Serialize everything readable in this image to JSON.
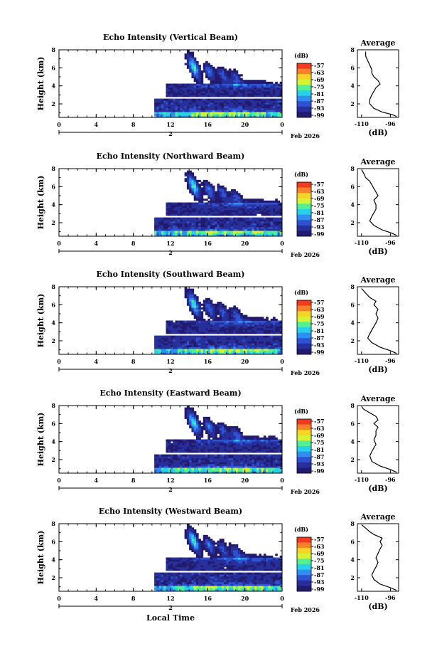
{
  "chart_data": [
    {
      "type": "heatmap",
      "title": "Echo Intensity (Vertical Beam)",
      "ylabel": "Height (km)",
      "xlabel": "",
      "x_ticks": [
        "0",
        "4",
        "8",
        "12",
        "16",
        "20",
        "0"
      ],
      "y_ticks": [
        "2",
        "4",
        "6",
        "8"
      ],
      "xlim": [
        0,
        24
      ],
      "ylim": [
        0.5,
        8
      ],
      "date_day": "2",
      "date_label": "Feb 2026",
      "colorbar": {
        "label": "(dB)",
        "ticks": [
          "-57",
          "-63",
          "-69",
          "-75",
          "-81",
          "-87",
          "-93",
          "-99"
        ],
        "colors": [
          "#f43a1e",
          "#f8822a",
          "#f5d426",
          "#d6f234",
          "#52ef94",
          "#27d2e8",
          "#2f8ff0",
          "#2e52d2",
          "#27309a",
          "#221a6e"
        ]
      },
      "average": {
        "title": "Average",
        "xlabel": "(dB)",
        "x_ticks": [
          "-110",
          "-96"
        ],
        "y_ticks": [
          "2",
          "4",
          "6",
          "8"
        ],
        "xlim": [
          -112,
          -92
        ],
        "ylim": [
          0.5,
          8
        ],
        "profile": [
          [
            -93,
            0.6
          ],
          [
            -95,
            0.8
          ],
          [
            -100,
            1.1
          ],
          [
            -104,
            1.5
          ],
          [
            -106,
            2.0
          ],
          [
            -106,
            2.5
          ],
          [
            -105,
            3.0
          ],
          [
            -104,
            3.4
          ],
          [
            -103,
            3.8
          ],
          [
            -101,
            4.2
          ],
          [
            -102,
            4.6
          ],
          [
            -104,
            5.0
          ],
          [
            -105,
            5.4
          ],
          [
            -105,
            5.8
          ],
          [
            -106,
            6.3
          ],
          [
            -107,
            6.8
          ],
          [
            -108,
            7.3
          ],
          [
            -108,
            7.8
          ]
        ]
      }
    },
    {
      "type": "heatmap",
      "title": "Echo Intensity (Northward Beam)",
      "ylabel": "Height (km)",
      "xlabel": "",
      "x_ticks": [
        "0",
        "4",
        "8",
        "12",
        "16",
        "20",
        "0"
      ],
      "y_ticks": [
        "2",
        "4",
        "6",
        "8"
      ],
      "xlim": [
        0,
        24
      ],
      "ylim": [
        0.5,
        8
      ],
      "date_day": "2",
      "date_label": "Feb 2026",
      "colorbar": {
        "label": "(dB)",
        "ticks": [
          "-57",
          "-63",
          "-69",
          "-75",
          "-81",
          "-87",
          "-93",
          "-99"
        ],
        "colors": [
          "#f43a1e",
          "#f8822a",
          "#f5d426",
          "#d6f234",
          "#52ef94",
          "#27d2e8",
          "#2f8ff0",
          "#2e52d2",
          "#27309a",
          "#221a6e"
        ]
      },
      "average": {
        "title": "Average",
        "xlabel": "(dB)",
        "x_ticks": [
          "-110",
          "-96"
        ],
        "y_ticks": [
          "2",
          "4",
          "6",
          "8"
        ],
        "xlim": [
          -112,
          -92
        ],
        "ylim": [
          0.5,
          8
        ],
        "profile": [
          [
            -93,
            0.6
          ],
          [
            -96,
            0.9
          ],
          [
            -100,
            1.2
          ],
          [
            -104,
            1.7
          ],
          [
            -106,
            2.2
          ],
          [
            -105,
            2.7
          ],
          [
            -104,
            3.1
          ],
          [
            -103,
            3.5
          ],
          [
            -103,
            4.0
          ],
          [
            -104,
            4.5
          ],
          [
            -102,
            5.0
          ],
          [
            -103,
            5.4
          ],
          [
            -104,
            5.8
          ],
          [
            -105,
            6.2
          ],
          [
            -106,
            6.6
          ],
          [
            -108,
            7.0
          ],
          [
            -109,
            7.5
          ],
          [
            -110,
            7.9
          ]
        ]
      }
    },
    {
      "type": "heatmap",
      "title": "Echo Intensity (Southward Beam)",
      "ylabel": "Height (km)",
      "xlabel": "",
      "x_ticks": [
        "0",
        "4",
        "8",
        "12",
        "16",
        "20",
        "0"
      ],
      "y_ticks": [
        "2",
        "4",
        "6",
        "8"
      ],
      "xlim": [
        0,
        24
      ],
      "ylim": [
        0.5,
        8
      ],
      "date_day": "2",
      "date_label": "Feb 2026",
      "colorbar": {
        "label": "(dB)",
        "ticks": [
          "-57",
          "-63",
          "-69",
          "-75",
          "-81",
          "-87",
          "-93",
          "-99"
        ],
        "colors": [
          "#f43a1e",
          "#f8822a",
          "#f5d426",
          "#d6f234",
          "#52ef94",
          "#27d2e8",
          "#2f8ff0",
          "#2e52d2",
          "#27309a",
          "#221a6e"
        ]
      },
      "average": {
        "title": "Average",
        "xlabel": "(dB)",
        "x_ticks": [
          "-110",
          "-96"
        ],
        "y_ticks": [
          "2",
          "4",
          "6",
          "8"
        ],
        "xlim": [
          -112,
          -92
        ],
        "ylim": [
          0.5,
          8
        ],
        "profile": [
          [
            -93,
            0.6
          ],
          [
            -96,
            0.9
          ],
          [
            -101,
            1.3
          ],
          [
            -105,
            1.8
          ],
          [
            -107,
            2.3
          ],
          [
            -106,
            2.8
          ],
          [
            -105,
            3.2
          ],
          [
            -104,
            3.6
          ],
          [
            -103,
            4.0
          ],
          [
            -102,
            4.5
          ],
          [
            -103,
            5.0
          ],
          [
            -102,
            5.5
          ],
          [
            -104,
            6.0
          ],
          [
            -103,
            6.4
          ],
          [
            -106,
            6.8
          ],
          [
            -108,
            7.3
          ],
          [
            -110,
            7.8
          ]
        ]
      }
    },
    {
      "type": "heatmap",
      "title": "Echo Intensity (Eastward Beam)",
      "ylabel": "Height (km)",
      "xlabel": "",
      "x_ticks": [
        "0",
        "4",
        "8",
        "12",
        "16",
        "20",
        "0"
      ],
      "y_ticks": [
        "2",
        "4",
        "6",
        "8"
      ],
      "xlim": [
        0,
        24
      ],
      "ylim": [
        0.5,
        8
      ],
      "date_day": "2",
      "date_label": "Feb 2026",
      "colorbar": {
        "label": "(dB)",
        "ticks": [
          "-57",
          "-63",
          "-69",
          "-75",
          "-81",
          "-87",
          "-93",
          "-99"
        ],
        "colors": [
          "#f43a1e",
          "#f8822a",
          "#f5d426",
          "#d6f234",
          "#52ef94",
          "#27d2e8",
          "#2f8ff0",
          "#2e52d2",
          "#27309a",
          "#221a6e"
        ]
      },
      "average": {
        "title": "Average",
        "xlabel": "(dB)",
        "x_ticks": [
          "-110",
          "-96"
        ],
        "y_ticks": [
          "2",
          "4",
          "6",
          "8"
        ],
        "xlim": [
          -112,
          -92
        ],
        "ylim": [
          0.5,
          8
        ],
        "profile": [
          [
            -93,
            0.6
          ],
          [
            -96,
            0.9
          ],
          [
            -101,
            1.3
          ],
          [
            -105,
            1.8
          ],
          [
            -106,
            2.4
          ],
          [
            -105,
            2.9
          ],
          [
            -104,
            3.3
          ],
          [
            -103,
            3.7
          ],
          [
            -104,
            4.2
          ],
          [
            -103,
            4.7
          ],
          [
            -103,
            5.2
          ],
          [
            -102,
            5.6
          ],
          [
            -104,
            6.0
          ],
          [
            -102,
            6.4
          ],
          [
            -103,
            6.8
          ],
          [
            -106,
            7.2
          ],
          [
            -109,
            7.6
          ],
          [
            -110,
            7.9
          ]
        ]
      }
    },
    {
      "type": "heatmap",
      "title": "Echo Intensity (Westward Beam)",
      "ylabel": "Height (km)",
      "xlabel": "Local Time",
      "x_ticks": [
        "0",
        "4",
        "8",
        "12",
        "16",
        "20",
        "0"
      ],
      "y_ticks": [
        "2",
        "4",
        "6",
        "8"
      ],
      "xlim": [
        0,
        24
      ],
      "ylim": [
        0.5,
        8
      ],
      "date_day": "2",
      "date_label": "Feb 2026",
      "colorbar": {
        "label": "(dB)",
        "ticks": [
          "-57",
          "-63",
          "-69",
          "-75",
          "-81",
          "-87",
          "-93",
          "-99"
        ],
        "colors": [
          "#f43a1e",
          "#f8822a",
          "#f5d426",
          "#d6f234",
          "#52ef94",
          "#27d2e8",
          "#2f8ff0",
          "#2e52d2",
          "#27309a",
          "#221a6e"
        ]
      },
      "average": {
        "title": "Average",
        "xlabel": "(dB)",
        "x_ticks": [
          "-110",
          "-96"
        ],
        "y_ticks": [
          "2",
          "4",
          "6",
          "8"
        ],
        "xlim": [
          -112,
          -92
        ],
        "ylim": [
          0.5,
          8
        ],
        "profile": [
          [
            -93,
            0.6
          ],
          [
            -96,
            0.9
          ],
          [
            -101,
            1.3
          ],
          [
            -104,
            1.8
          ],
          [
            -105,
            2.3
          ],
          [
            -104,
            2.8
          ],
          [
            -103,
            3.2
          ],
          [
            -102,
            3.7
          ],
          [
            -103,
            4.2
          ],
          [
            -102,
            4.7
          ],
          [
            -101,
            5.2
          ],
          [
            -100,
            5.6
          ],
          [
            -101,
            6.0
          ],
          [
            -100,
            6.4
          ],
          [
            -104,
            6.8
          ],
          [
            -106,
            7.1
          ],
          [
            -108,
            7.5
          ],
          [
            -110,
            7.9
          ]
        ]
      }
    }
  ]
}
